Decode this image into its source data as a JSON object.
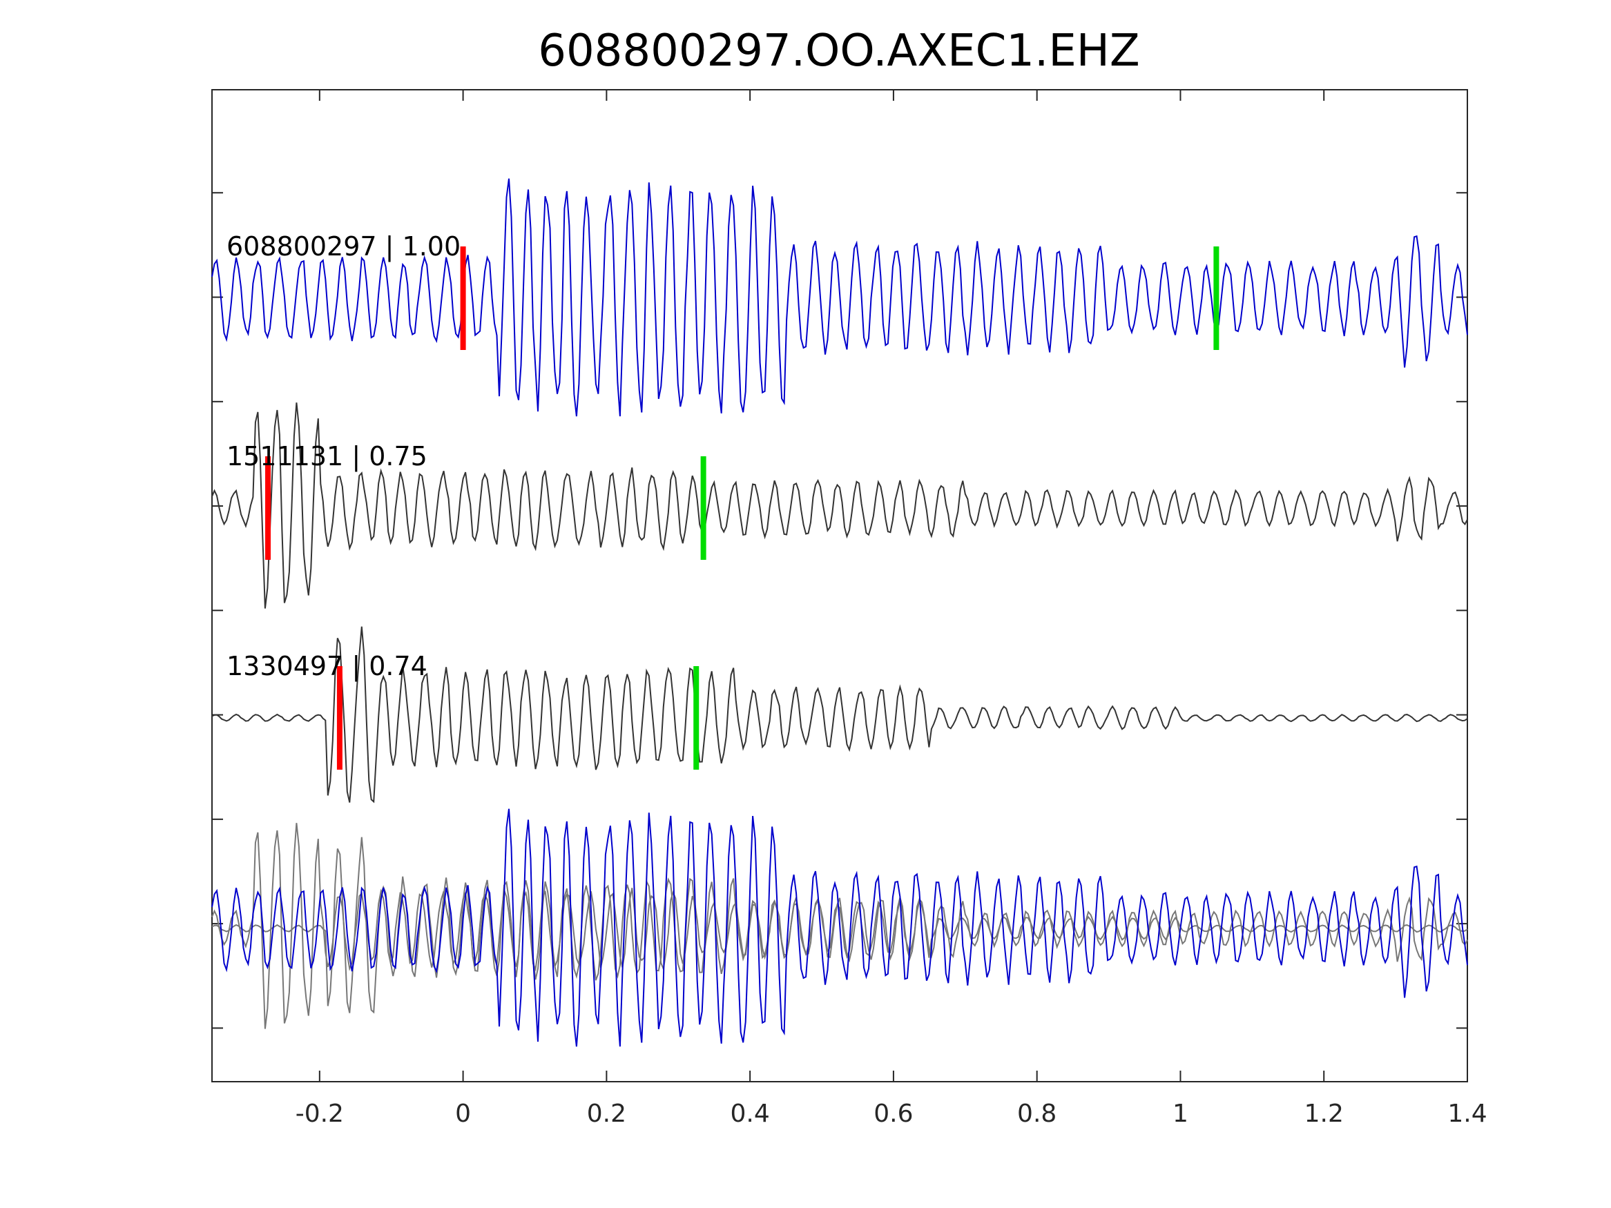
{
  "chart_data": {
    "type": "line",
    "title": "608800297.OO.AXEC1.EHZ",
    "xlabel": "",
    "ylabel": "",
    "xlim": [
      -0.35,
      1.4
    ],
    "x_ticks": [
      -0.2,
      0,
      0.2,
      0.4,
      0.6,
      0.8,
      1,
      1.2,
      1.4
    ],
    "x_tick_labels": [
      "-0.2",
      "0",
      "0.2",
      "0.4",
      "0.6",
      "0.8",
      "1",
      "1.2",
      "1.4"
    ],
    "y_tick_count": 9,
    "grid": false,
    "traces": [
      {
        "label": "608800297 | 1.00",
        "color": "#0000cc",
        "p_pick": 0.0,
        "s_pick": 1.05,
        "pick_colors": {
          "p": "#ff0000",
          "s": "#00dd00"
        }
      },
      {
        "label": "1511131 | 0.75",
        "color": "#333333",
        "p_pick": -0.272,
        "s_pick": 0.335,
        "pick_colors": {
          "p": "#ff0000",
          "s": "#00dd00"
        }
      },
      {
        "label": "1330497 | 0.74",
        "color": "#333333",
        "p_pick": -0.172,
        "s_pick": 0.325,
        "pick_colors": {
          "p": "#ff0000",
          "s": "#00dd00"
        }
      }
    ],
    "overlay": {
      "colors": [
        "#0000cc",
        "#777777",
        "#777777"
      ]
    }
  }
}
